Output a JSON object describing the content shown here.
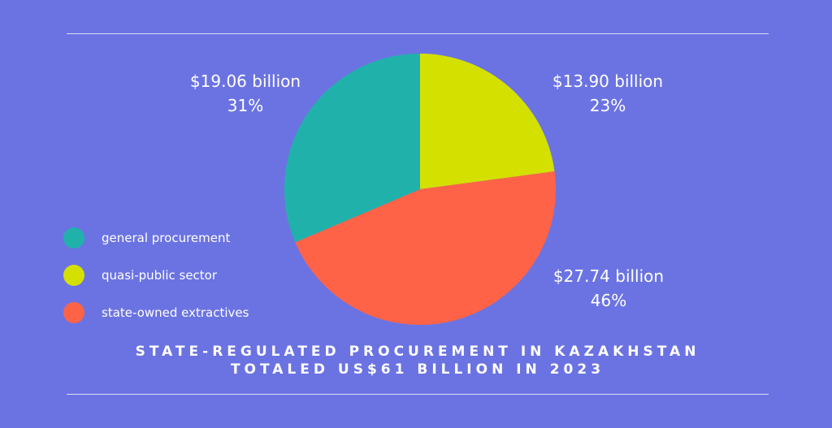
{
  "chart_data": {
    "type": "pie",
    "title_lines": [
      "STATE-REGULATED PROCUREMENT IN KAZAKHSTAN",
      "TOTALED US$61 BILLION IN 2023"
    ],
    "slices": [
      {
        "name": "quasi-public sector",
        "value": 13.9,
        "value_label": "$13.90 billion",
        "percent_label": "23%",
        "color": "#d4e000"
      },
      {
        "name": "state-owned extractives",
        "value": 27.74,
        "value_label": "$27.74 billion",
        "percent_label": "46%",
        "color": "#ff6347"
      },
      {
        "name": "general procurement",
        "value": 19.06,
        "value_label": "$19.06 billion",
        "percent_label": "31%",
        "color": "#20b2aa"
      }
    ],
    "start_angle": "top, clockwise",
    "legend_order": [
      "general procurement",
      "quasi-public sector",
      "state-owned extractives"
    ]
  },
  "background": "#6b73e2"
}
